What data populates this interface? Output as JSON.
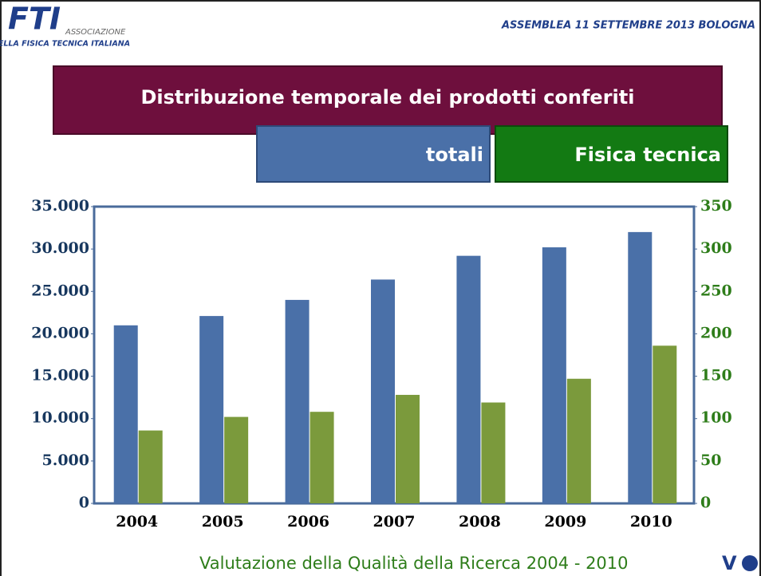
{
  "header": {
    "logo": "FTI",
    "association": "ASSOCIAZIONE",
    "association_full": "DELLA FISICA TECNICA ITALIANA",
    "event": "ASSEMBLEA  11 SETTEMBRE  2013 BOLOGNA"
  },
  "footer": {
    "text": "Valutazione della Qualità della Ricerca 2004 - 2010",
    "logo": "V"
  },
  "chart_data": {
    "type": "bar",
    "title": "Distribuzione temporale dei prodotti conferiti",
    "categories": [
      "2004",
      "2005",
      "2006",
      "2007",
      "2008",
      "2009",
      "2010"
    ],
    "series": [
      {
        "name": "totali",
        "color": "#4a70a8",
        "values": [
          21000,
          22100,
          24000,
          26400,
          29200,
          30200,
          32000
        ]
      },
      {
        "name": "Fisica tecnica",
        "color": "#7b9a3c",
        "axis": "y2",
        "values": [
          86,
          102,
          108,
          128,
          119,
          147,
          186
        ]
      }
    ],
    "ylim": [
      0,
      35000
    ],
    "yticks": [
      0,
      {
        "value": 5000,
        "label": "5.000"
      },
      {
        "value": 10000,
        "label": "10.000"
      },
      {
        "value": 15000,
        "label": "15.000"
      },
      {
        "value": 20000,
        "label": "20.000"
      },
      {
        "value": 25000,
        "label": "25.000"
      },
      {
        "value": 30000,
        "label": "30.000"
      },
      {
        "value": 35000,
        "label": "35.000"
      }
    ],
    "y2lim": [
      0,
      350
    ],
    "y2ticks": [
      0,
      50,
      100,
      150,
      200,
      250,
      300,
      350
    ],
    "grid": false
  }
}
